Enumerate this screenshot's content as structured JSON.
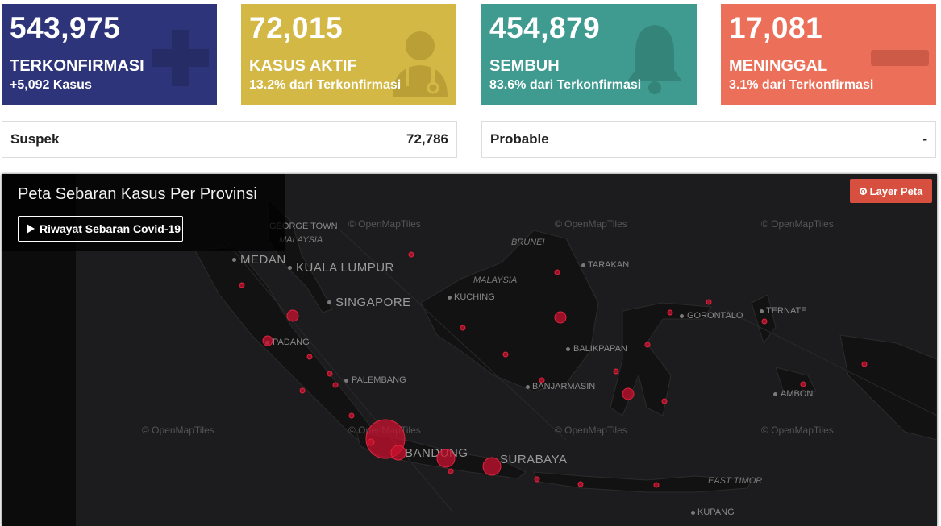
{
  "cards": [
    {
      "number": "543,975",
      "label": "TERKONFIRMASI",
      "sub": "+5,092 Kasus",
      "icon": "plus-icon"
    },
    {
      "number": "72,015",
      "label": "KASUS AKTIF",
      "sub": "13.2% dari Terkonfirmasi",
      "icon": "doctor-icon"
    },
    {
      "number": "454,879",
      "label": "SEMBUH",
      "sub": "83.6% dari Terkonfirmasi",
      "icon": "bell-icon"
    },
    {
      "number": "17,081",
      "label": "MENINGGAL",
      "sub": "3.1% dari Terkonfirmasi",
      "icon": "minus-icon"
    }
  ],
  "suspek": {
    "label": "Suspek",
    "value": "72,786"
  },
  "probable": {
    "label": "Probable",
    "value": "-"
  },
  "map": {
    "title": "Peta Sebaran Kasus Per Provinsi",
    "history_button": "Riwayat Sebaran Covid-19",
    "layer_button": "Layer Peta",
    "attribution": "© OpenMapTiles",
    "places": {
      "georgetown": "GEORGE TOWN",
      "malaysia_w": "MALAYSIA",
      "medan": "MEDAN",
      "kualalumpur": "KUALA LUMPUR",
      "singapore": "SINGAPORE",
      "padang": "PADANG",
      "palembang": "PALEMBANG",
      "brunei": "BRUNEI",
      "malaysia_e": "MALAYSIA",
      "kuching": "KUCHING",
      "tarakan": "TARAKAN",
      "balikpapan": "BALIKPAPAN",
      "banjarmasin": "BANJARMASIN",
      "gorontalo": "GORONTALO",
      "ternate": "TERNATE",
      "ambon": "AMBON",
      "bandung": "BANDUNG",
      "surabaya": "SURABAYA",
      "easttimor": "EAST TIMOR",
      "kupang": "KUPANG"
    }
  },
  "colors": {
    "confirmed": "#2d3479",
    "active": "#d3b846",
    "recovered": "#3f9a8f",
    "deaths": "#ec7059",
    "case_marker": "#c8102e"
  }
}
